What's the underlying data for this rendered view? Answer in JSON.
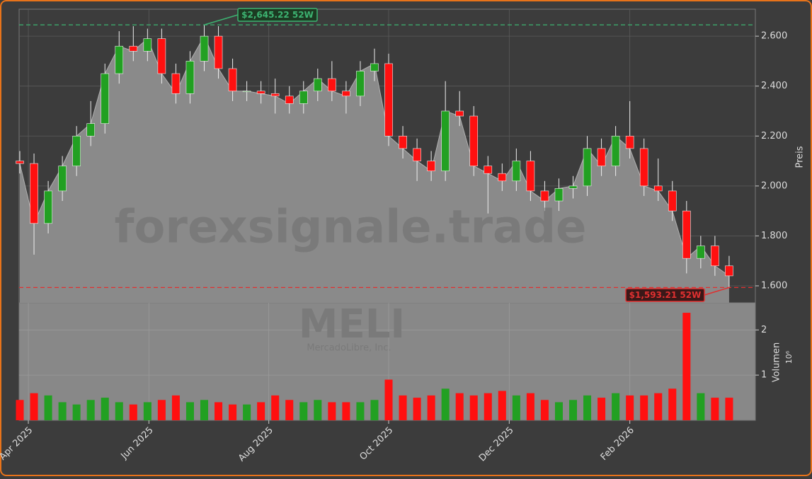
{
  "chart_data": {
    "type": "candlestick",
    "watermark": "forexsignale.trade",
    "ticker": "MELI",
    "company": "MercadoLibre, Inc.",
    "y_label": "Preis",
    "y2_label": "Volumen",
    "y2_scale": "10⁶",
    "up_color": "#22a022",
    "down_color": "#ff1010",
    "open": [
      2100,
      2090,
      1850,
      1980,
      2080,
      2200,
      2250,
      2450,
      2560,
      2540,
      2590,
      2450,
      2370,
      2500,
      2600,
      2470,
      2380,
      2380,
      2370,
      2360,
      2330,
      2380,
      2430,
      2380,
      2360,
      2460,
      2490,
      2200,
      2150,
      2100,
      2060,
      2300,
      2280,
      2080,
      2050,
      2020,
      2100,
      1980,
      1940,
      1990,
      2000,
      2150,
      2080,
      2200,
      2150,
      2000,
      1980,
      1900,
      1710,
      1760,
      1680
    ],
    "high": [
      2140,
      2130,
      2020,
      2120,
      2240,
      2340,
      2490,
      2620,
      2640,
      2630,
      2630,
      2490,
      2540,
      2645.22,
      2640,
      2510,
      2420,
      2420,
      2430,
      2400,
      2420,
      2470,
      2500,
      2420,
      2500,
      2550,
      2530,
      2240,
      2190,
      2140,
      2420,
      2380,
      2320,
      2120,
      2090,
      2150,
      2140,
      2020,
      2030,
      2040,
      2200,
      2190,
      2240,
      2340,
      2190,
      2110,
      2020,
      1940,
      1800,
      1800,
      1720
    ],
    "low": [
      2050,
      1725,
      1810,
      1940,
      2040,
      2160,
      2210,
      2410,
      2500,
      2500,
      2410,
      2330,
      2330,
      2460,
      2430,
      2340,
      2340,
      2330,
      2290,
      2290,
      2290,
      2340,
      2340,
      2290,
      2320,
      2420,
      2160,
      2110,
      2020,
      2020,
      2020,
      2240,
      2040,
      1890,
      1980,
      1980,
      1940,
      1900,
      1900,
      1950,
      1960,
      2040,
      2040,
      2110,
      1960,
      1940,
      1860,
      1650,
      1670,
      1640,
      1593.21
    ],
    "close": [
      2090,
      1850,
      1980,
      2080,
      2200,
      2250,
      2450,
      2560,
      2540,
      2590,
      2450,
      2370,
      2500,
      2600,
      2470,
      2380,
      2380,
      2370,
      2360,
      2330,
      2380,
      2430,
      2380,
      2360,
      2460,
      2490,
      2200,
      2150,
      2100,
      2060,
      2300,
      2280,
      2080,
      2050,
      2020,
      2100,
      1980,
      1940,
      1990,
      2000,
      2150,
      2080,
      2200,
      2150,
      2000,
      1980,
      1900,
      1710,
      1760,
      1680,
      1640
    ],
    "volume": [
      0.45,
      0.6,
      0.55,
      0.4,
      0.35,
      0.45,
      0.5,
      0.4,
      0.35,
      0.4,
      0.45,
      0.55,
      0.4,
      0.45,
      0.4,
      0.35,
      0.35,
      0.4,
      0.55,
      0.45,
      0.4,
      0.45,
      0.4,
      0.4,
      0.4,
      0.45,
      0.9,
      0.55,
      0.5,
      0.55,
      0.7,
      0.6,
      0.55,
      0.6,
      0.65,
      0.55,
      0.6,
      0.45,
      0.4,
      0.45,
      0.55,
      0.5,
      0.6,
      0.55,
      0.55,
      0.6,
      0.7,
      2.38,
      0.6,
      0.5,
      0.5
    ],
    "xlim": [
      -0.05,
      51.85
    ],
    "xticks": [
      {
        "value": 0.6,
        "label": "Apr 2025"
      },
      {
        "value": 9.1,
        "label": "Jun 2025"
      },
      {
        "value": 17.55,
        "label": "Aug 2025"
      },
      {
        "value": 26,
        "label": "Oct 2025"
      },
      {
        "value": 34.5,
        "label": "Dec 2025"
      },
      {
        "value": 43,
        "label": "Feb 2026"
      }
    ],
    "ylim": [
      1532,
      2708
    ],
    "yticks": [
      {
        "value": 1600,
        "label": "1.600"
      },
      {
        "value": 1800,
        "label": "1.800"
      },
      {
        "value": 2000,
        "label": "2.000"
      },
      {
        "value": 2200,
        "label": "2.200"
      },
      {
        "value": 2400,
        "label": "2.400"
      },
      {
        "value": 2600,
        "label": "2.600"
      }
    ],
    "y2lim": [
      0,
      2.6
    ],
    "y2ticks": [
      1,
      2
    ],
    "high_52w": {
      "value": 2645.22,
      "label": "$2,645.22 52W",
      "color": "#3cb371"
    },
    "low_52w": {
      "value": 1593.21,
      "label": "$1,593.21 52W",
      "color": "#e03030"
    },
    "grid": true
  }
}
